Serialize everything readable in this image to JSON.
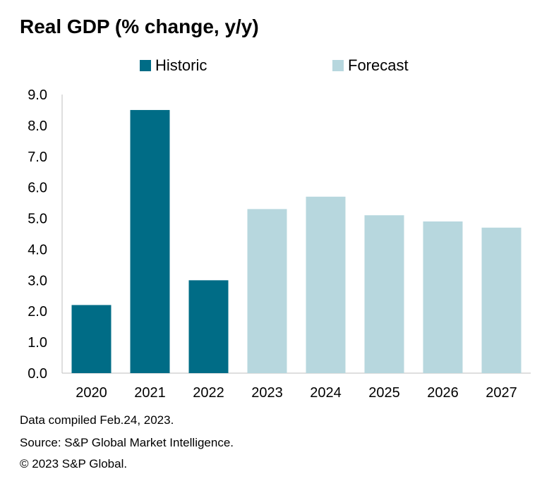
{
  "chart_data": {
    "type": "bar",
    "title": "Real GDP (% change, y/y)",
    "categories": [
      "2020",
      "2021",
      "2022",
      "2023",
      "2024",
      "2025",
      "2026",
      "2027"
    ],
    "values": [
      2.2,
      8.5,
      3.0,
      5.3,
      5.7,
      5.1,
      4.9,
      4.7
    ],
    "kind": [
      "historic",
      "historic",
      "historic",
      "forecast",
      "forecast",
      "forecast",
      "forecast",
      "forecast"
    ],
    "ylim": [
      0,
      9
    ],
    "yticks": [
      "0.0",
      "1.0",
      "2.0",
      "3.0",
      "4.0",
      "5.0",
      "6.0",
      "7.0",
      "8.0",
      "9.0"
    ],
    "xlabel": "",
    "ylabel": "",
    "grid": false,
    "legend": [
      {
        "key": "historic",
        "label": "Historic",
        "color": "#006c86"
      },
      {
        "key": "forecast",
        "label": "Forecast",
        "color": "#b7d7de"
      }
    ]
  },
  "notes": {
    "compiled": "Data compiled Feb.24, 2023.",
    "source": "Source: S&P Global Market Intelligence.",
    "copyright": "© 2023 S&P Global."
  }
}
